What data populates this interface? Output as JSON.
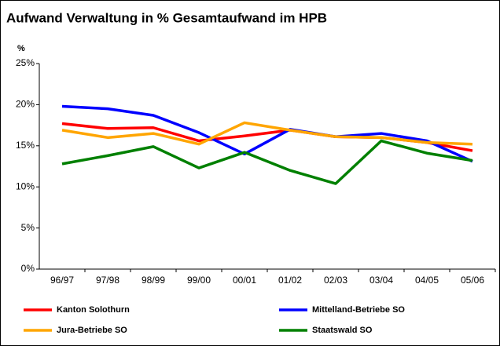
{
  "chart_data": {
    "type": "line",
    "title": "Aufwand Verwaltung in % Gesamtaufwand im HPB",
    "y_label": "%",
    "categories": [
      "96/97",
      "97/98",
      "98/99",
      "99/00",
      "00/01",
      "01/02",
      "02/03",
      "03/04",
      "04/05",
      "05/06"
    ],
    "series": [
      {
        "name": "Kanton Solothurn",
        "color": "#ff0000",
        "values": [
          17.7,
          17.1,
          17.2,
          15.6,
          16.2,
          16.9,
          16.1,
          16.0,
          15.4,
          14.4
        ]
      },
      {
        "name": "Mittelland-Betriebe SO",
        "color": "#0000ff",
        "values": [
          19.8,
          19.5,
          18.7,
          16.6,
          14.0,
          17.0,
          16.1,
          16.5,
          15.6,
          13.1
        ]
      },
      {
        "name": "Jura-Betriebe SO",
        "color": "#ffa500",
        "values": [
          16.9,
          16.0,
          16.5,
          15.2,
          17.8,
          16.9,
          16.1,
          16.0,
          15.4,
          15.2
        ]
      },
      {
        "name": "Staatswald SO",
        "color": "#008000",
        "values": [
          12.8,
          13.8,
          14.9,
          12.3,
          14.2,
          12.0,
          10.4,
          15.6,
          14.1,
          13.2
        ]
      }
    ],
    "ylim": [
      0,
      25
    ],
    "yticks": [
      {
        "value": 0,
        "label": "0%"
      },
      {
        "value": 5,
        "label": "5%"
      },
      {
        "value": 10,
        "label": "10%"
      },
      {
        "value": 15,
        "label": "15%"
      },
      {
        "value": 20,
        "label": "20%"
      },
      {
        "value": 25,
        "label": "25%"
      }
    ],
    "grid": false
  }
}
